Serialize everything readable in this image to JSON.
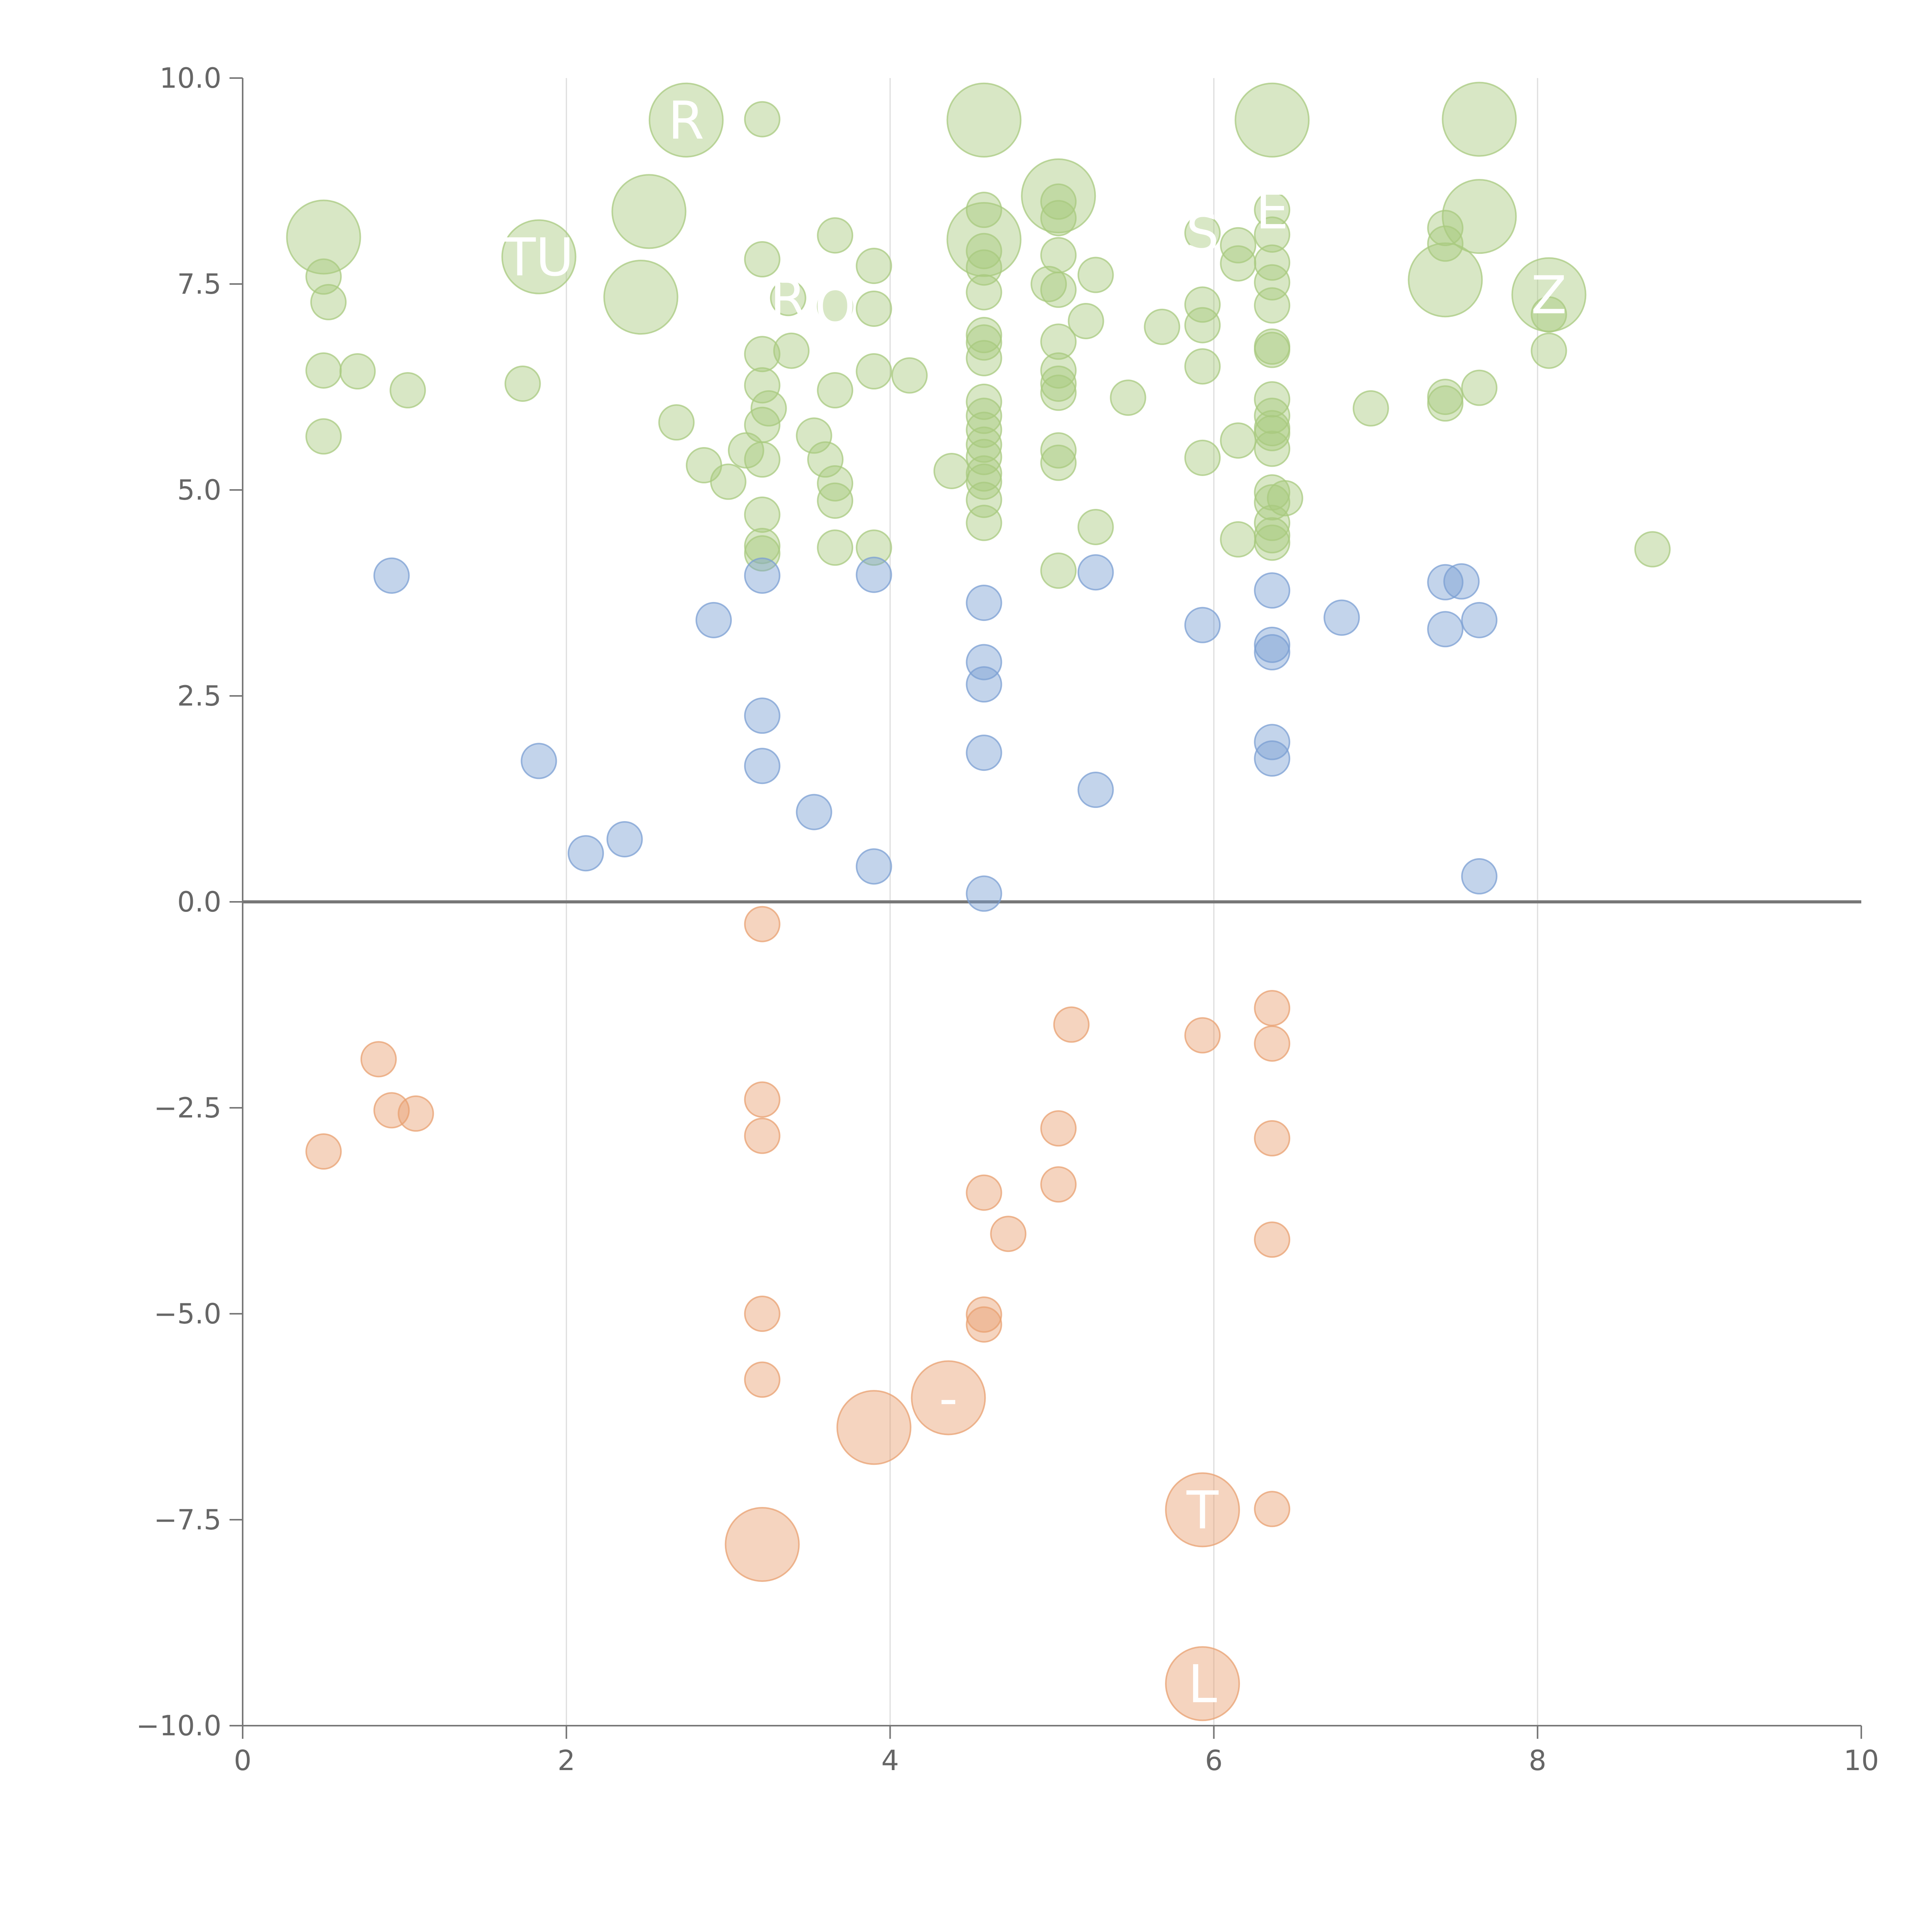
{
  "chart_data": {
    "type": "scatter",
    "title": "",
    "xlabel": "",
    "ylabel": "",
    "xlim": [
      0,
      10
    ],
    "ylim": [
      -10,
      10
    ],
    "grid": "vertical",
    "x_ticks": [
      "0",
      "2",
      "4",
      "6",
      "8",
      "10"
    ],
    "y_ticks": [
      "−10.0",
      "−7.5",
      "−5.0",
      "−2.5",
      "0.0",
      "2.5",
      "5.0",
      "7.5",
      "10.0"
    ],
    "series": [
      {
        "name": "green",
        "color": "#a8c97f",
        "points": [
          {
            "x": 0.5,
            "y": 8.07,
            "r": 2,
            "label": ""
          },
          {
            "x": 0.5,
            "y": 7.59,
            "r": 1
          },
          {
            "x": 0.53,
            "y": 7.28,
            "r": 1
          },
          {
            "x": 0.5,
            "y": 6.45,
            "r": 1
          },
          {
            "x": 0.71,
            "y": 6.44,
            "r": 1
          },
          {
            "x": 1.02,
            "y": 6.21,
            "r": 1
          },
          {
            "x": 0.5,
            "y": 5.65,
            "r": 1
          },
          {
            "x": 1.83,
            "y": 7.83,
            "r": 2,
            "label": "TU"
          },
          {
            "x": 1.73,
            "y": 6.29,
            "r": 1
          },
          {
            "x": 2.74,
            "y": 9.49,
            "r": 2,
            "label": "R"
          },
          {
            "x": 2.51,
            "y": 8.38,
            "r": 2
          },
          {
            "x": 2.46,
            "y": 7.34,
            "r": 2
          },
          {
            "x": 2.68,
            "y": 5.82,
            "r": 1
          },
          {
            "x": 2.85,
            "y": 5.3,
            "r": 1
          },
          {
            "x": 3.0,
            "y": 5.1,
            "r": 1
          },
          {
            "x": 3.21,
            "y": 9.5,
            "r": 1
          },
          {
            "x": 3.21,
            "y": 7.8,
            "r": 1
          },
          {
            "x": 3.37,
            "y": 7.33,
            "r": 1,
            "label": "R"
          },
          {
            "x": 3.21,
            "y": 6.65,
            "r": 1
          },
          {
            "x": 3.39,
            "y": 6.69,
            "r": 1
          },
          {
            "x": 3.21,
            "y": 6.27,
            "r": 1
          },
          {
            "x": 3.25,
            "y": 5.99,
            "r": 1
          },
          {
            "x": 3.21,
            "y": 5.79,
            "r": 1
          },
          {
            "x": 3.11,
            "y": 5.48,
            "r": 1
          },
          {
            "x": 3.21,
            "y": 5.37,
            "r": 1
          },
          {
            "x": 3.21,
            "y": 4.7,
            "r": 1
          },
          {
            "x": 3.21,
            "y": 4.32,
            "r": 1
          },
          {
            "x": 3.21,
            "y": 4.23,
            "r": 1
          },
          {
            "x": 3.66,
            "y": 8.09,
            "r": 1
          },
          {
            "x": 3.66,
            "y": 7.23,
            "r": 1,
            "label": "O"
          },
          {
            "x": 3.53,
            "y": 5.66,
            "r": 1
          },
          {
            "x": 3.6,
            "y": 5.37,
            "r": 1
          },
          {
            "x": 3.66,
            "y": 5.08,
            "r": 1
          },
          {
            "x": 3.66,
            "y": 4.87,
            "r": 1
          },
          {
            "x": 3.66,
            "y": 4.3,
            "r": 1
          },
          {
            "x": 3.66,
            "y": 6.21,
            "r": 1
          },
          {
            "x": 3.9,
            "y": 7.72,
            "r": 1
          },
          {
            "x": 3.9,
            "y": 7.2,
            "r": 1
          },
          {
            "x": 3.9,
            "y": 6.44,
            "r": 1
          },
          {
            "x": 4.12,
            "y": 6.39,
            "r": 1
          },
          {
            "x": 3.9,
            "y": 4.3,
            "r": 1
          },
          {
            "x": 4.58,
            "y": 9.49,
            "r": 2
          },
          {
            "x": 4.58,
            "y": 8.04,
            "r": 2
          },
          {
            "x": 4.58,
            "y": 8.4,
            "r": 1
          },
          {
            "x": 4.58,
            "y": 7.9,
            "r": 1
          },
          {
            "x": 4.58,
            "y": 7.7,
            "r": 1
          },
          {
            "x": 4.58,
            "y": 7.4,
            "r": 1
          },
          {
            "x": 4.58,
            "y": 6.88,
            "r": 1
          },
          {
            "x": 4.58,
            "y": 6.79,
            "r": 1
          },
          {
            "x": 4.58,
            "y": 6.6,
            "r": 1
          },
          {
            "x": 4.58,
            "y": 6.07,
            "r": 1
          },
          {
            "x": 4.58,
            "y": 5.9,
            "r": 1
          },
          {
            "x": 4.58,
            "y": 5.73,
            "r": 1
          },
          {
            "x": 4.58,
            "y": 5.55,
            "r": 1
          },
          {
            "x": 4.58,
            "y": 5.4,
            "r": 1
          },
          {
            "x": 4.58,
            "y": 5.2,
            "r": 1
          },
          {
            "x": 4.58,
            "y": 5.1,
            "r": 1
          },
          {
            "x": 4.58,
            "y": 4.88,
            "r": 1
          },
          {
            "x": 4.58,
            "y": 4.6,
            "r": 1
          },
          {
            "x": 4.38,
            "y": 5.23,
            "r": 1
          },
          {
            "x": 5.04,
            "y": 8.57,
            "r": 2
          },
          {
            "x": 5.04,
            "y": 8.5,
            "r": 1
          },
          {
            "x": 5.04,
            "y": 8.3,
            "r": 1
          },
          {
            "x": 5.04,
            "y": 7.85,
            "r": 1
          },
          {
            "x": 4.98,
            "y": 7.5,
            "r": 1
          },
          {
            "x": 5.04,
            "y": 7.43,
            "r": 1
          },
          {
            "x": 5.04,
            "y": 6.8,
            "r": 1
          },
          {
            "x": 5.04,
            "y": 6.45,
            "r": 1
          },
          {
            "x": 5.04,
            "y": 6.29,
            "r": 1
          },
          {
            "x": 5.04,
            "y": 6.18,
            "r": 1
          },
          {
            "x": 5.04,
            "y": 5.48,
            "r": 1
          },
          {
            "x": 5.04,
            "y": 5.33,
            "r": 1
          },
          {
            "x": 5.04,
            "y": 4.02,
            "r": 1
          },
          {
            "x": 5.27,
            "y": 7.61,
            "r": 1
          },
          {
            "x": 5.21,
            "y": 7.05,
            "r": 1
          },
          {
            "x": 5.47,
            "y": 6.12,
            "r": 1
          },
          {
            "x": 5.27,
            "y": 4.55,
            "r": 1
          },
          {
            "x": 5.68,
            "y": 6.98,
            "r": 1
          },
          {
            "x": 5.93,
            "y": 8.12,
            "r": 1,
            "label": "S"
          },
          {
            "x": 5.93,
            "y": 7.25,
            "r": 1
          },
          {
            "x": 5.93,
            "y": 7.0,
            "r": 1
          },
          {
            "x": 5.93,
            "y": 6.5,
            "r": 1
          },
          {
            "x": 5.93,
            "y": 5.39,
            "r": 1
          },
          {
            "x": 6.15,
            "y": 7.97,
            "r": 1
          },
          {
            "x": 6.15,
            "y": 7.75,
            "r": 1
          },
          {
            "x": 6.15,
            "y": 5.6,
            "r": 1
          },
          {
            "x": 6.15,
            "y": 4.4,
            "r": 1
          },
          {
            "x": 6.36,
            "y": 9.49,
            "r": 2
          },
          {
            "x": 6.36,
            "y": 8.4,
            "r": 1,
            "label": "E"
          },
          {
            "x": 6.36,
            "y": 8.1,
            "r": 1
          },
          {
            "x": 6.36,
            "y": 7.76,
            "r": 1
          },
          {
            "x": 6.36,
            "y": 7.52,
            "r": 1
          },
          {
            "x": 6.36,
            "y": 7.24,
            "r": 1
          },
          {
            "x": 6.36,
            "y": 6.74,
            "r": 1
          },
          {
            "x": 6.36,
            "y": 6.7,
            "r": 1
          },
          {
            "x": 6.36,
            "y": 6.1,
            "r": 1
          },
          {
            "x": 6.36,
            "y": 5.9,
            "r": 1
          },
          {
            "x": 6.36,
            "y": 5.75,
            "r": 1
          },
          {
            "x": 6.36,
            "y": 5.69,
            "r": 1
          },
          {
            "x": 6.36,
            "y": 5.5,
            "r": 1
          },
          {
            "x": 6.36,
            "y": 4.97,
            "r": 1
          },
          {
            "x": 6.36,
            "y": 4.85,
            "r": 1
          },
          {
            "x": 6.44,
            "y": 4.9,
            "r": 1
          },
          {
            "x": 6.36,
            "y": 4.6,
            "r": 1
          },
          {
            "x": 6.36,
            "y": 4.45,
            "r": 1
          },
          {
            "x": 6.36,
            "y": 4.36,
            "r": 1
          },
          {
            "x": 6.97,
            "y": 5.99,
            "r": 1
          },
          {
            "x": 7.43,
            "y": 8.18,
            "r": 1
          },
          {
            "x": 7.43,
            "y": 7.99,
            "r": 1
          },
          {
            "x": 7.43,
            "y": 7.55,
            "r": 2
          },
          {
            "x": 7.43,
            "y": 6.13,
            "r": 1
          },
          {
            "x": 7.43,
            "y": 6.05,
            "r": 1
          },
          {
            "x": 7.64,
            "y": 9.5,
            "r": 2
          },
          {
            "x": 7.64,
            "y": 8.32,
            "r": 2
          },
          {
            "x": 7.64,
            "y": 6.24,
            "r": 1
          },
          {
            "x": 8.07,
            "y": 7.37,
            "r": 2,
            "label": "Z"
          },
          {
            "x": 8.07,
            "y": 7.13,
            "r": 1
          },
          {
            "x": 8.07,
            "y": 6.69,
            "r": 1
          },
          {
            "x": 8.71,
            "y": 4.28,
            "r": 1
          }
        ]
      },
      {
        "name": "blue",
        "color": "#7b9fd3",
        "points": [
          {
            "x": 0.92,
            "y": 3.96,
            "r": 1
          },
          {
            "x": 1.83,
            "y": 1.71,
            "r": 1
          },
          {
            "x": 2.12,
            "y": 0.59,
            "r": 1
          },
          {
            "x": 2.36,
            "y": 0.76,
            "r": 1
          },
          {
            "x": 2.91,
            "y": 3.42,
            "r": 1
          },
          {
            "x": 3.21,
            "y": 3.96,
            "r": 1
          },
          {
            "x": 3.21,
            "y": 2.26,
            "r": 1
          },
          {
            "x": 3.21,
            "y": 1.65,
            "r": 1
          },
          {
            "x": 3.53,
            "y": 1.09,
            "r": 1
          },
          {
            "x": 3.9,
            "y": 3.97,
            "r": 1
          },
          {
            "x": 3.9,
            "y": 0.43,
            "r": 1
          },
          {
            "x": 4.58,
            "y": 3.63,
            "r": 1
          },
          {
            "x": 4.58,
            "y": 2.91,
            "r": 1
          },
          {
            "x": 4.58,
            "y": 2.64,
            "r": 1
          },
          {
            "x": 4.58,
            "y": 1.81,
            "r": 1
          },
          {
            "x": 4.58,
            "y": 0.1,
            "r": 1
          },
          {
            "x": 5.27,
            "y": 4.0,
            "r": 1
          },
          {
            "x": 5.27,
            "y": 1.36,
            "r": 1
          },
          {
            "x": 5.93,
            "y": 3.36,
            "r": 1
          },
          {
            "x": 6.36,
            "y": 3.78,
            "r": 1
          },
          {
            "x": 6.36,
            "y": 3.12,
            "r": 1
          },
          {
            "x": 6.36,
            "y": 3.03,
            "r": 1
          },
          {
            "x": 6.36,
            "y": 1.94,
            "r": 1
          },
          {
            "x": 6.36,
            "y": 1.74,
            "r": 1
          },
          {
            "x": 6.79,
            "y": 3.45,
            "r": 1
          },
          {
            "x": 7.43,
            "y": 3.88,
            "r": 1
          },
          {
            "x": 7.53,
            "y": 3.89,
            "r": 1
          },
          {
            "x": 7.43,
            "y": 3.31,
            "r": 1
          },
          {
            "x": 7.64,
            "y": 3.42,
            "r": 1
          },
          {
            "x": 7.64,
            "y": 0.31,
            "r": 1
          }
        ]
      },
      {
        "name": "orange",
        "color": "#e8a070",
        "points": [
          {
            "x": 0.84,
            "y": -1.91,
            "r": 1
          },
          {
            "x": 0.92,
            "y": -2.53,
            "r": 1
          },
          {
            "x": 1.07,
            "y": -2.57,
            "r": 1
          },
          {
            "x": 0.5,
            "y": -3.03,
            "r": 1
          },
          {
            "x": 3.21,
            "y": -0.27,
            "r": 1
          },
          {
            "x": 3.21,
            "y": -2.4,
            "r": 1
          },
          {
            "x": 3.21,
            "y": -2.84,
            "r": 1
          },
          {
            "x": 3.21,
            "y": -5.0,
            "r": 1
          },
          {
            "x": 3.21,
            "y": -5.8,
            "r": 1
          },
          {
            "x": 3.21,
            "y": -7.8,
            "r": 2
          },
          {
            "x": 3.9,
            "y": -6.38,
            "r": 2
          },
          {
            "x": 4.36,
            "y": -6.02,
            "r": 2,
            "label": "-"
          },
          {
            "x": 4.58,
            "y": -3.53,
            "r": 1
          },
          {
            "x": 4.58,
            "y": -5.01,
            "r": 1
          },
          {
            "x": 4.58,
            "y": -5.13,
            "r": 1
          },
          {
            "x": 4.73,
            "y": -4.03,
            "r": 1
          },
          {
            "x": 5.04,
            "y": -2.75,
            "r": 1
          },
          {
            "x": 5.04,
            "y": -3.43,
            "r": 1
          },
          {
            "x": 5.12,
            "y": -1.49,
            "r": 1
          },
          {
            "x": 5.93,
            "y": -1.62,
            "r": 1
          },
          {
            "x": 5.93,
            "y": -7.38,
            "r": 2,
            "label": "T"
          },
          {
            "x": 5.93,
            "y": -9.49,
            "r": 2,
            "label": "L"
          },
          {
            "x": 6.36,
            "y": -1.29,
            "r": 1
          },
          {
            "x": 6.36,
            "y": -1.72,
            "r": 1
          },
          {
            "x": 6.36,
            "y": -2.87,
            "r": 1
          },
          {
            "x": 6.36,
            "y": -4.1,
            "r": 1
          },
          {
            "x": 6.36,
            "y": -7.37,
            "r": 1
          }
        ]
      }
    ]
  }
}
